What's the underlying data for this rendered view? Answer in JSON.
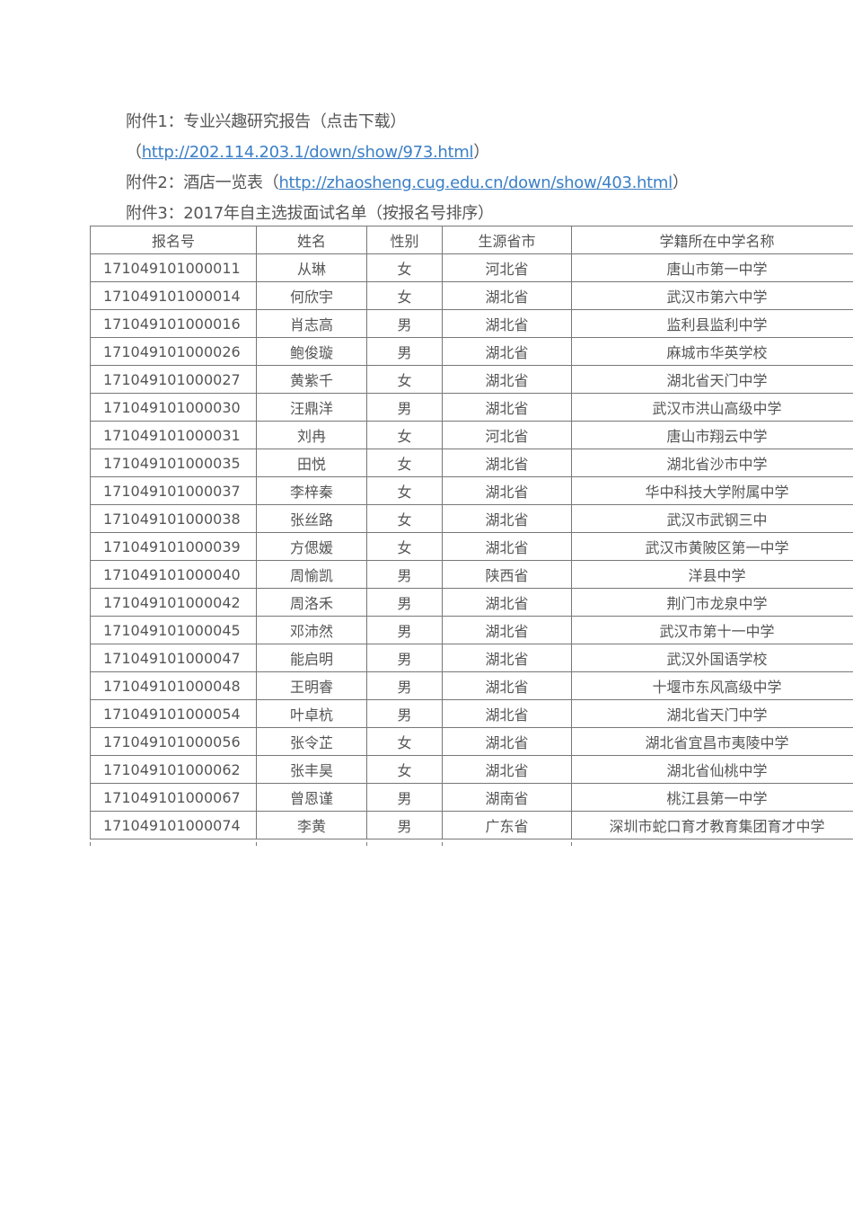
{
  "attachments": [
    {
      "prefix": "附件1：专业兴趣研究报告（点击下载）"
    },
    {
      "prefix": "（",
      "link": "http://202.114.203.1/down/show/973.html",
      "suffix": "）"
    },
    {
      "prefix": "附件2：酒店一览表（",
      "link": "http://zhaosheng.cug.edu.cn/down/show/403.html",
      "suffix": "）"
    },
    {
      "prefix": "附件3：2017年自主选拔面试名单（按报名号排序）"
    }
  ],
  "table": {
    "headers": [
      "报名号",
      "姓名",
      "性别",
      "生源省市",
      "学籍所在中学名称"
    ],
    "rows": [
      [
        "171049101000011",
        "从琳",
        "女",
        "河北省",
        "唐山市第一中学"
      ],
      [
        "171049101000014",
        "何欣宇",
        "女",
        "湖北省",
        "武汉市第六中学"
      ],
      [
        "171049101000016",
        "肖志高",
        "男",
        "湖北省",
        "监利县监利中学"
      ],
      [
        "171049101000026",
        "鲍俊璇",
        "男",
        "湖北省",
        "麻城市华英学校"
      ],
      [
        "171049101000027",
        "黄紫千",
        "女",
        "湖北省",
        "湖北省天门中学"
      ],
      [
        "171049101000030",
        "汪鼎洋",
        "男",
        "湖北省",
        "武汉市洪山高级中学"
      ],
      [
        "171049101000031",
        "刘冉",
        "女",
        "河北省",
        "唐山市翔云中学"
      ],
      [
        "171049101000035",
        "田悦",
        "女",
        "湖北省",
        "湖北省沙市中学"
      ],
      [
        "171049101000037",
        "李梓秦",
        "女",
        "湖北省",
        "华中科技大学附属中学"
      ],
      [
        "171049101000038",
        "张丝路",
        "女",
        "湖北省",
        "武汉市武钢三中"
      ],
      [
        "171049101000039",
        "方偲媛",
        "女",
        "湖北省",
        "武汉市黄陂区第一中学"
      ],
      [
        "171049101000040",
        "周愉凯",
        "男",
        "陕西省",
        "洋县中学"
      ],
      [
        "171049101000042",
        "周洛禾",
        "男",
        "湖北省",
        "荆门市龙泉中学"
      ],
      [
        "171049101000045",
        "邓沛然",
        "男",
        "湖北省",
        "武汉市第十一中学"
      ],
      [
        "171049101000047",
        "能启明",
        "男",
        "湖北省",
        "武汉外国语学校"
      ],
      [
        "171049101000048",
        "王明睿",
        "男",
        "湖北省",
        "十堰市东风高级中学"
      ],
      [
        "171049101000054",
        "叶卓杭",
        "男",
        "湖北省",
        "湖北省天门中学"
      ],
      [
        "171049101000056",
        "张令芷",
        "女",
        "湖北省",
        "湖北省宜昌市夷陵中学"
      ],
      [
        "171049101000062",
        "张丰昊",
        "女",
        "湖北省",
        "湖北省仙桃中学"
      ],
      [
        "171049101000067",
        "曾恩谨",
        "男",
        "湖南省",
        "桃江县第一中学"
      ],
      [
        "171049101000074",
        "李黄",
        "男",
        "广东省",
        "深圳市蛇口育才教育集团育才中学"
      ]
    ]
  }
}
